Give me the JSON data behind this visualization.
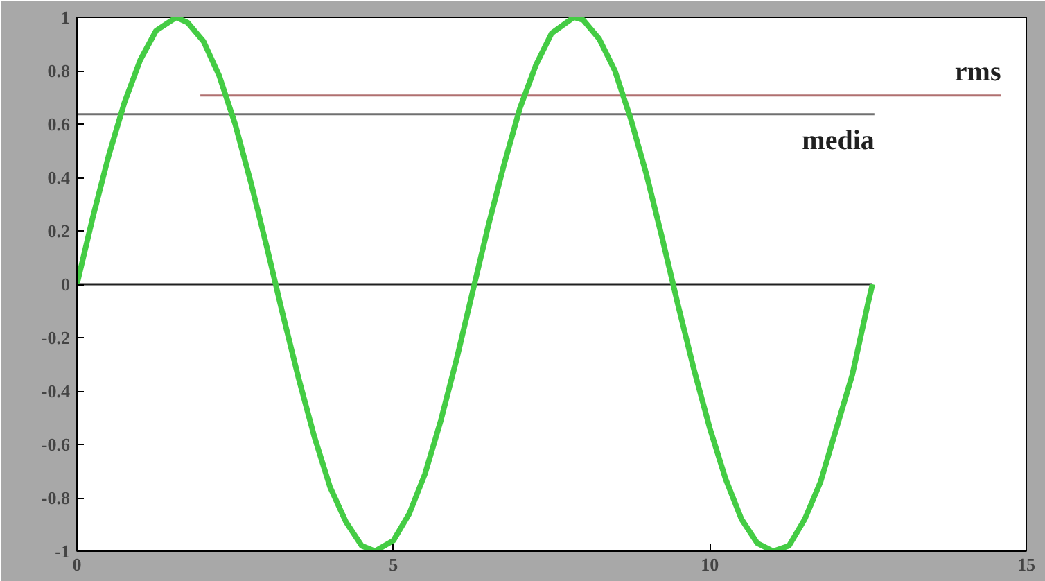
{
  "chart_data": {
    "type": "line",
    "xlim": [
      0,
      15
    ],
    "ylim": [
      -1,
      1
    ],
    "xticks": [
      0,
      5,
      10,
      15
    ],
    "yticks": [
      {
        "value": -1,
        "label": "-1"
      },
      {
        "value": -0.8,
        "label": "-0.8"
      },
      {
        "value": -0.6,
        "label": "-0.6"
      },
      {
        "value": -0.4,
        "label": "-0.4"
      },
      {
        "value": -0.2,
        "label": "-0.2"
      },
      {
        "value": 0,
        "label": "0"
      },
      {
        "value": 0.2,
        "label": "0.2"
      },
      {
        "value": 0.4,
        "label": "0.4"
      },
      {
        "value": 0.6,
        "label": "0.6"
      },
      {
        "value": 0.8,
        "label": "0.8"
      },
      {
        "value": 1,
        "label": "1"
      }
    ],
    "grid": false,
    "marker": "none",
    "line_style": "solid",
    "series": [
      {
        "color": "#202020",
        "x": [
          0,
          12.57
        ],
        "values": [
          0,
          0
        ]
      },
      {
        "name": "media",
        "color": "#707070",
        "x": [
          0,
          12.6
        ],
        "values": [
          0.637,
          0.637
        ]
      },
      {
        "name": "rms",
        "color": "#b07070",
        "x": [
          1.95,
          14.6
        ],
        "values": [
          0.707,
          0.707
        ]
      },
      {
        "color": "#44cc44",
        "x": [
          0,
          0.25,
          0.5,
          0.75,
          1.0,
          1.25,
          1.57,
          1.75,
          2.0,
          2.25,
          2.5,
          2.75,
          3.0,
          3.25,
          3.5,
          3.75,
          4.0,
          4.25,
          4.5,
          4.71,
          5.0,
          5.25,
          5.5,
          5.75,
          6.0,
          6.25,
          6.5,
          6.75,
          7.0,
          7.25,
          7.5,
          7.85,
          8.0,
          8.25,
          8.5,
          8.75,
          9.0,
          9.25,
          9.5,
          9.75,
          10.0,
          10.25,
          10.5,
          10.75,
          11.0,
          11.25,
          11.5,
          11.75,
          12.0,
          12.25,
          12.5,
          12.57
        ],
        "values": [
          0,
          0.25,
          0.48,
          0.68,
          0.84,
          0.95,
          1.0,
          0.98,
          0.91,
          0.78,
          0.6,
          0.38,
          0.14,
          -0.11,
          -0.35,
          -0.57,
          -0.76,
          -0.89,
          -0.98,
          -1.0,
          -0.96,
          -0.86,
          -0.71,
          -0.51,
          -0.28,
          -0.03,
          0.22,
          0.45,
          0.66,
          0.82,
          0.94,
          1.0,
          0.99,
          0.92,
          0.8,
          0.62,
          0.41,
          0.17,
          -0.08,
          -0.32,
          -0.54,
          -0.73,
          -0.88,
          -0.97,
          -1.0,
          -0.98,
          -0.88,
          -0.74,
          -0.54,
          -0.34,
          -0.07,
          0
        ]
      }
    ]
  }
}
